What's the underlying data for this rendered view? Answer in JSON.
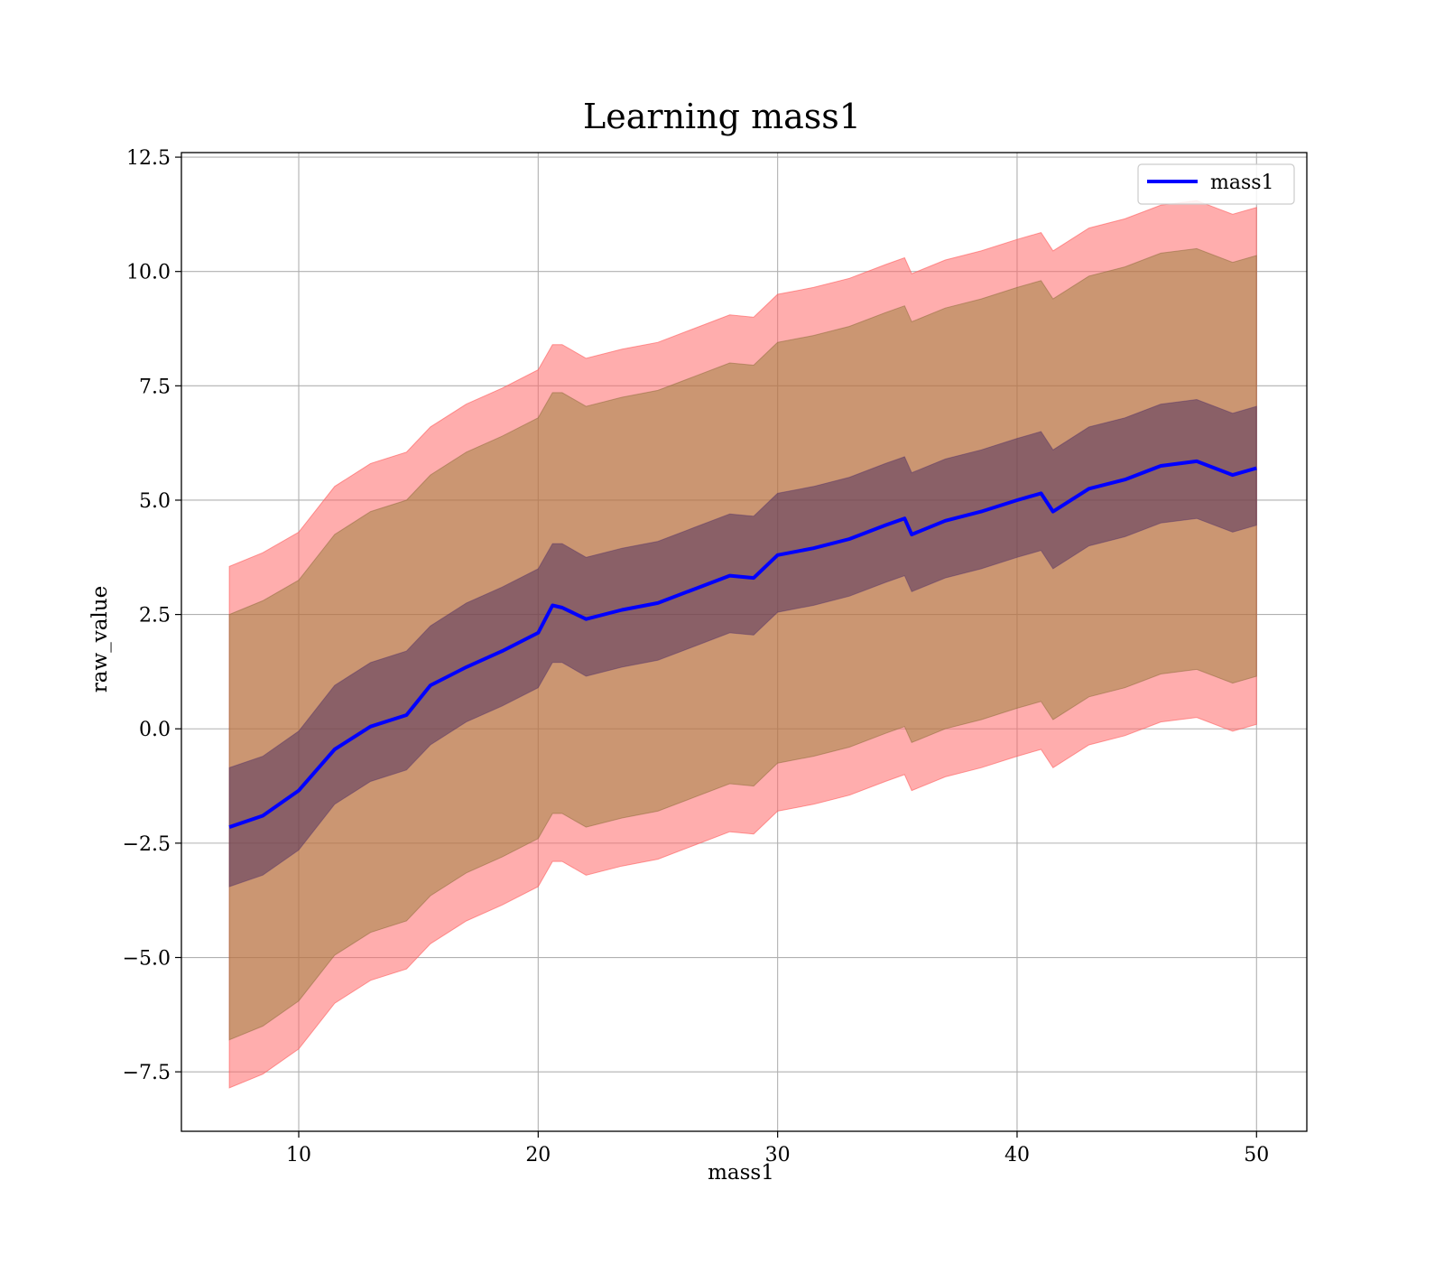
{
  "chart_data": {
    "type": "area",
    "title": "Learning mass1",
    "xlabel": "mass1",
    "ylabel": "raw_value",
    "xlim": [
      5.1,
      52.1
    ],
    "ylim": [
      -8.8,
      12.6
    ],
    "xticks": [
      10,
      20,
      30,
      40,
      50
    ],
    "yticks": [
      -7.5,
      -5.0,
      -2.5,
      0.0,
      2.5,
      5.0,
      7.5,
      10.0,
      12.5
    ],
    "xtick_labels": [
      "10",
      "20",
      "30",
      "40",
      "50"
    ],
    "ytick_labels": [
      "−7.5",
      "−5.0",
      "−2.5",
      "0.0",
      "2.5",
      "5.0",
      "7.5",
      "10.0",
      "12.5"
    ],
    "grid": true,
    "legend": {
      "position": "top-right",
      "entries": [
        "mass1"
      ]
    },
    "colors": {
      "mean_line": "#0000ff",
      "outer_band": "#ff6a6a",
      "middle_band": "#8b7a2a",
      "inner_band": "#3b1f5a"
    },
    "x": [
      7.1,
      8.5,
      10.0,
      11.5,
      13.0,
      14.5,
      15.5,
      17.0,
      18.5,
      20.0,
      20.6,
      21.0,
      22.0,
      23.5,
      25.0,
      26.5,
      28.0,
      29.0,
      30.0,
      31.5,
      33.0,
      34.5,
      35.3,
      35.6,
      37.0,
      38.5,
      40.0,
      41.0,
      41.5,
      43.0,
      44.5,
      46.0,
      47.5,
      49.0,
      50.0
    ],
    "series": [
      {
        "name": "mass1",
        "role": "mean",
        "values": [
          -2.15,
          -1.9,
          -1.35,
          -0.45,
          0.05,
          0.3,
          0.95,
          1.35,
          1.7,
          2.1,
          2.7,
          2.65,
          2.4,
          2.6,
          2.75,
          3.05,
          3.35,
          3.3,
          3.8,
          3.95,
          4.15,
          4.45,
          4.6,
          4.25,
          4.55,
          4.75,
          5.0,
          5.15,
          4.75,
          5.25,
          5.45,
          5.75,
          5.85,
          5.55,
          5.7
        ]
      },
      {
        "name": "",
        "role": "outer-band-upper",
        "values": [
          3.55,
          3.85,
          4.3,
          5.3,
          5.8,
          6.05,
          6.6,
          7.1,
          7.45,
          7.85,
          8.4,
          8.4,
          8.1,
          8.3,
          8.45,
          8.75,
          9.05,
          9.0,
          9.5,
          9.65,
          9.85,
          10.15,
          10.3,
          9.95,
          10.25,
          10.45,
          10.7,
          10.85,
          10.45,
          10.95,
          11.15,
          11.45,
          11.55,
          11.25,
          11.4
        ]
      },
      {
        "name": "",
        "role": "middle-band-upper",
        "values": [
          2.5,
          2.8,
          3.25,
          4.25,
          4.75,
          5.0,
          5.55,
          6.05,
          6.4,
          6.8,
          7.35,
          7.35,
          7.05,
          7.25,
          7.4,
          7.7,
          8.0,
          7.95,
          8.45,
          8.6,
          8.8,
          9.1,
          9.25,
          8.9,
          9.2,
          9.4,
          9.65,
          9.8,
          9.4,
          9.9,
          10.1,
          10.4,
          10.5,
          10.2,
          10.35
        ]
      },
      {
        "name": "",
        "role": "inner-band-upper",
        "values": [
          -0.85,
          -0.6,
          -0.05,
          0.95,
          1.45,
          1.7,
          2.25,
          2.75,
          3.1,
          3.5,
          4.05,
          4.05,
          3.75,
          3.95,
          4.1,
          4.4,
          4.7,
          4.65,
          5.15,
          5.3,
          5.5,
          5.8,
          5.95,
          5.6,
          5.9,
          6.1,
          6.35,
          6.5,
          6.1,
          6.6,
          6.8,
          7.1,
          7.2,
          6.9,
          7.05
        ]
      },
      {
        "name": "",
        "role": "inner-band-lower",
        "values": [
          -3.45,
          -3.2,
          -2.65,
          -1.65,
          -1.15,
          -0.9,
          -0.35,
          0.15,
          0.5,
          0.9,
          1.45,
          1.45,
          1.15,
          1.35,
          1.5,
          1.8,
          2.1,
          2.05,
          2.55,
          2.7,
          2.9,
          3.2,
          3.35,
          3.0,
          3.3,
          3.5,
          3.75,
          3.9,
          3.5,
          4.0,
          4.2,
          4.5,
          4.6,
          4.3,
          4.45
        ]
      },
      {
        "name": "",
        "role": "middle-band-lower",
        "values": [
          -6.8,
          -6.5,
          -5.95,
          -4.95,
          -4.45,
          -4.2,
          -3.65,
          -3.15,
          -2.8,
          -2.4,
          -1.85,
          -1.85,
          -2.15,
          -1.95,
          -1.8,
          -1.5,
          -1.2,
          -1.25,
          -0.75,
          -0.6,
          -0.4,
          -0.1,
          0.05,
          -0.3,
          0.0,
          0.2,
          0.45,
          0.6,
          0.2,
          0.7,
          0.9,
          1.2,
          1.3,
          1.0,
          1.15
        ]
      },
      {
        "name": "",
        "role": "outer-band-lower",
        "values": [
          -7.85,
          -7.55,
          -7.0,
          -6.0,
          -5.5,
          -5.25,
          -4.7,
          -4.2,
          -3.85,
          -3.45,
          -2.9,
          -2.9,
          -3.2,
          -3.0,
          -2.85,
          -2.55,
          -2.25,
          -2.3,
          -1.8,
          -1.65,
          -1.45,
          -1.15,
          -1.0,
          -1.35,
          -1.05,
          -0.85,
          -0.6,
          -0.45,
          -0.85,
          -0.35,
          -0.15,
          0.15,
          0.25,
          -0.05,
          0.1
        ]
      }
    ]
  }
}
